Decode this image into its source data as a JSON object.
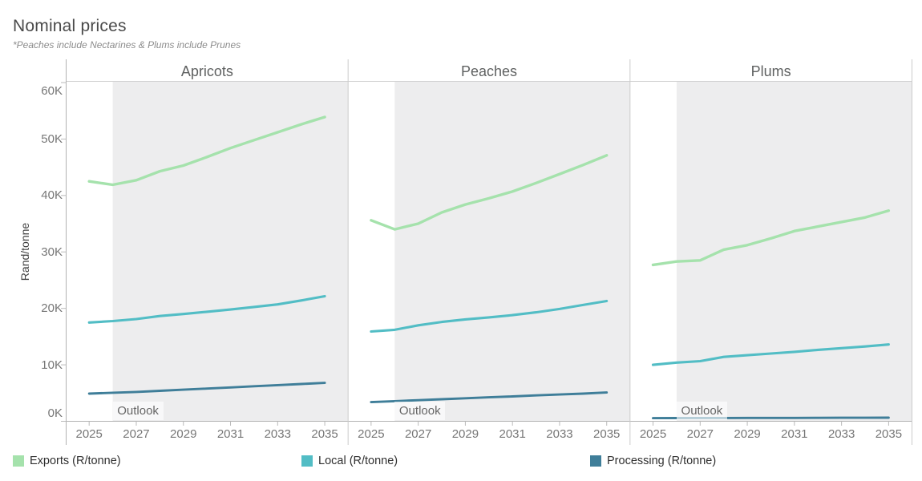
{
  "title": "Nominal prices",
  "subtitle": "*Peaches include Nectarines & Plums include Prunes",
  "y_axis_title": "Rand/tonne",
  "outlook_label": "Outlook",
  "legend": [
    {
      "label": "Exports (R/tonne)",
      "color": "#a5e2ac"
    },
    {
      "label": "Local (R/tonne)",
      "color": "#52bdc5"
    },
    {
      "label": "Processing (R/tonne)",
      "color": "#3f7e99"
    }
  ],
  "chart_data": {
    "type": "line",
    "layout": "small-multiples, 3 panels sharing one y axis",
    "title": "Nominal prices",
    "subtitle": "*Peaches include Nectarines & Plums include Prunes",
    "panels": [
      "Apricots",
      "Peaches",
      "Plums"
    ],
    "x": [
      2025,
      2026,
      2027,
      2028,
      2029,
      2030,
      2031,
      2032,
      2033,
      2034,
      2035
    ],
    "x_tick_labels": [
      "2025",
      "2027",
      "2029",
      "2031",
      "2033",
      "2035"
    ],
    "ylabel": "Rand/tonne",
    "ylim": [
      0,
      60000
    ],
    "y_ticks": [
      0,
      10000,
      20000,
      30000,
      40000,
      50000,
      60000
    ],
    "y_tick_labels": [
      "0K",
      "10K",
      "20K",
      "30K",
      "40K",
      "50K",
      "60K"
    ],
    "grid": false,
    "legend_position": "bottom",
    "outlook_shading": {
      "label": "Outlook",
      "start_x": 2026,
      "end": "panel right edge",
      "fill": "#ededee"
    },
    "series": [
      {
        "name": "Exports (R/tonne)",
        "color": "#a5e2ac",
        "values": {
          "Apricots": [
            42500,
            41900,
            42700,
            44300,
            45300,
            46800,
            48400,
            49800,
            51200,
            52600,
            53900
          ],
          "Peaches": [
            35600,
            34000,
            35000,
            37000,
            38400,
            39500,
            40700,
            42200,
            43800,
            45400,
            47100
          ],
          "Plums": [
            27700,
            28300,
            28500,
            30400,
            31200,
            32400,
            33700,
            34500,
            35300,
            36100,
            37300
          ]
        }
      },
      {
        "name": "Local (R/tonne)",
        "color": "#52bdc5",
        "values": {
          "Apricots": [
            17500,
            17750,
            18100,
            18650,
            19000,
            19400,
            19800,
            20250,
            20700,
            21400,
            22150
          ],
          "Peaches": [
            15900,
            16200,
            17000,
            17600,
            18050,
            18400,
            18800,
            19300,
            19900,
            20600,
            21300
          ],
          "Plums": [
            10000,
            10400,
            10650,
            11400,
            11700,
            12000,
            12300,
            12650,
            12950,
            13250,
            13600
          ]
        }
      },
      {
        "name": "Processing (R/tonne)",
        "color": "#3f7e99",
        "values": {
          "Apricots": [
            4900,
            5050,
            5200,
            5400,
            5600,
            5800,
            6000,
            6200,
            6400,
            6600,
            6800
          ],
          "Peaches": [
            3400,
            3570,
            3740,
            3900,
            4070,
            4240,
            4400,
            4580,
            4750,
            4900,
            5100
          ],
          "Plums": [
            550,
            570,
            580,
            580,
            590,
            600,
            600,
            610,
            620,
            630,
            640
          ]
        }
      }
    ]
  }
}
